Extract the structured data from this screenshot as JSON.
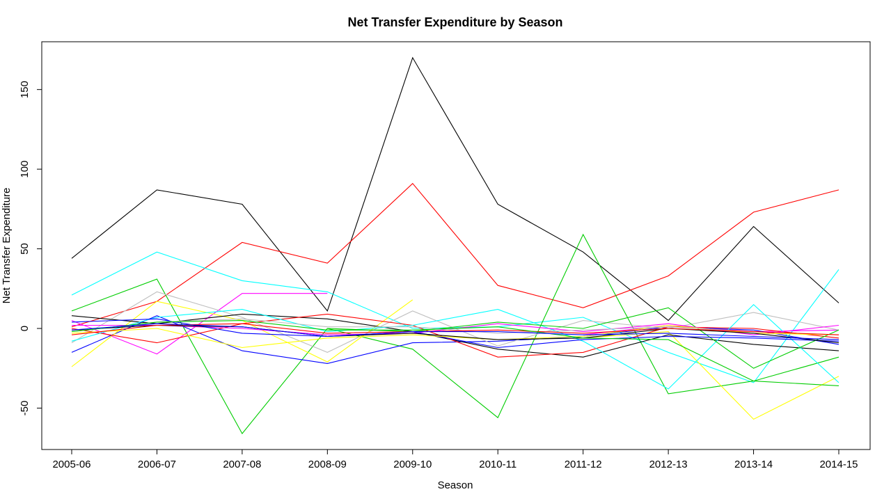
{
  "chart_data": {
    "type": "line",
    "title": "Net Transfer Expenditure by Season",
    "xlabel": "Season",
    "ylabel": "Net Transfer Expenditure",
    "categories": [
      "2005-06",
      "2006-07",
      "2007-08",
      "2008-09",
      "2009-10",
      "2010-11",
      "2011-12",
      "2012-13",
      "2013-14",
      "2014-15"
    ],
    "ylim": [
      -76,
      180
    ],
    "yticks": [
      -50,
      0,
      50,
      100,
      150
    ],
    "grid": false,
    "legend": "none",
    "series": [
      {
        "color": "#000000",
        "values": [
          44,
          87,
          78,
          11,
          170,
          78,
          48,
          5,
          64,
          16
        ]
      },
      {
        "color": "#ff0000",
        "values": [
          1,
          17,
          54,
          41,
          91,
          27,
          13,
          33,
          73,
          87
        ]
      },
      {
        "color": "#00ffff",
        "values": [
          21,
          48,
          30,
          23,
          0,
          1,
          7,
          -15,
          -34,
          37
        ]
      },
      {
        "color": "#00cd00",
        "values": [
          11,
          31,
          -66,
          0,
          -13,
          -56,
          59,
          -41,
          -33,
          -18
        ]
      },
      {
        "color": "#ff00ff",
        "values": [
          5,
          -16,
          22,
          22,
          null,
          null,
          -4,
          2,
          -2,
          -1
        ]
      },
      {
        "color": "#0000ff",
        "values": [
          -15,
          8,
          -14,
          -22,
          -9,
          -8,
          -5,
          1,
          -1,
          -10
        ]
      },
      {
        "color": "#ffff00",
        "values": [
          -24,
          17,
          5,
          -21,
          18,
          null,
          -6,
          -2,
          -57,
          -30
        ]
      },
      {
        "color": "#bebebe",
        "values": [
          -9,
          23,
          7,
          -15,
          11,
          -11,
          5,
          0,
          10,
          -1
        ]
      },
      {
        "color": "#000000",
        "values": [
          8,
          3,
          9,
          6,
          -2,
          -13,
          -18,
          -4,
          -10,
          -14
        ]
      },
      {
        "color": "#ff0000",
        "values": [
          0,
          -9,
          3,
          9,
          2,
          -18,
          -15,
          1,
          0,
          -6
        ]
      },
      {
        "color": "#00ffff",
        "values": [
          -8,
          7,
          12,
          -2,
          2,
          12,
          -8,
          -38,
          15,
          -34
        ]
      },
      {
        "color": "#00cd00",
        "values": [
          null,
          null,
          null,
          0,
          -2,
          4,
          0,
          13,
          -25,
          -1
        ]
      },
      {
        "color": "#ff00ff",
        "values": [
          2,
          2,
          0,
          -4,
          -3,
          3,
          -2,
          3,
          -4,
          2
        ]
      },
      {
        "color": "#0000ff",
        "values": [
          4,
          6,
          -3,
          -5,
          -2,
          -12,
          -7,
          -5,
          -6,
          -8
        ]
      },
      {
        "color": "#ffff00",
        "values": [
          -3,
          0,
          -12,
          -6,
          -4,
          -7,
          -5,
          2,
          -3,
          -4
        ]
      },
      {
        "color": "#bebebe",
        "values": [
          -2,
          4,
          6,
          1,
          1,
          -3,
          -1,
          1,
          -2,
          -4
        ]
      },
      {
        "color": "#000000",
        "values": [
          -1,
          2,
          1,
          -5,
          -3,
          -7,
          -6,
          0,
          -3,
          -9
        ]
      },
      {
        "color": "#ff0000",
        "values": [
          -4,
          2,
          3,
          -3,
          -2,
          -1,
          -3,
          0,
          -2,
          -4
        ]
      },
      {
        "color": "#00cd00",
        "values": [
          -2,
          4,
          5,
          -1,
          -1,
          1,
          -6,
          -7,
          -33,
          -36
        ]
      },
      {
        "color": "#0000ff",
        "values": [
          -1,
          3,
          1,
          -5,
          -2,
          -2,
          -4,
          -3,
          -5,
          -7
        ]
      }
    ]
  }
}
